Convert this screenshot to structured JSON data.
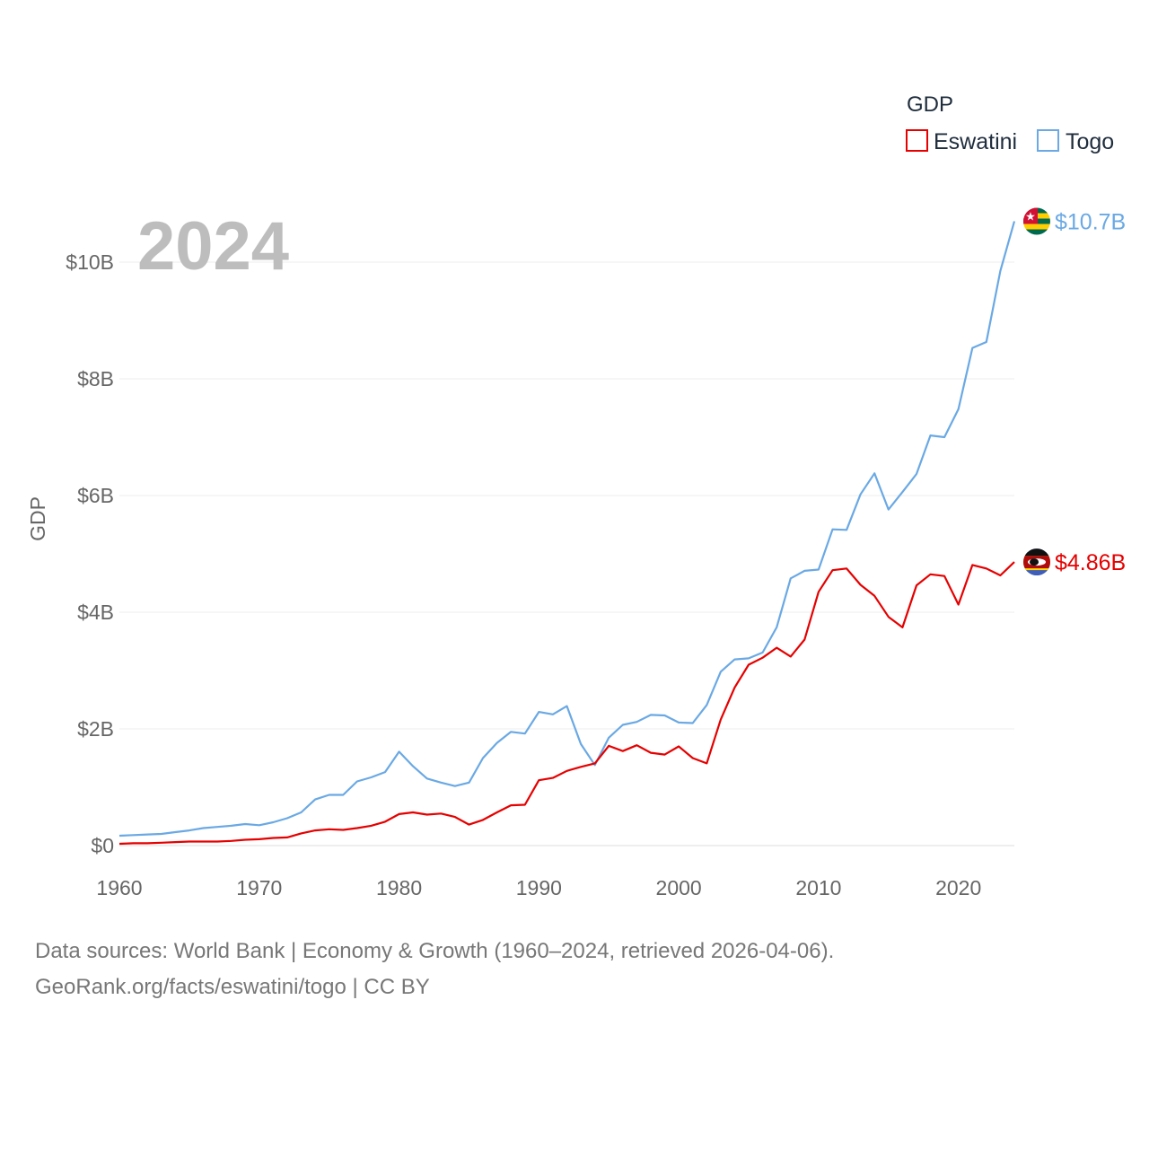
{
  "chart_data": {
    "type": "line",
    "title": "",
    "watermark_year": "2024",
    "ylabel": "GDP",
    "xlabel": "",
    "xlim": [
      1960,
      2024
    ],
    "ylim": [
      0,
      10.7
    ],
    "grid": true,
    "x_ticks": [
      1960,
      1970,
      1980,
      1990,
      2000,
      2010,
      2020
    ],
    "x_tick_labels": [
      "1960",
      "1970",
      "1980",
      "1990",
      "2000",
      "2010",
      "2020"
    ],
    "y_ticks": [
      0,
      2,
      4,
      6,
      8,
      10
    ],
    "y_tick_labels": [
      "$0",
      "$2B",
      "$4B",
      "$6B",
      "$8B",
      "$10B"
    ],
    "legend": {
      "title": "GDP",
      "position": "top-right"
    },
    "x": [
      1960,
      1961,
      1962,
      1963,
      1964,
      1965,
      1966,
      1967,
      1968,
      1969,
      1970,
      1971,
      1972,
      1973,
      1974,
      1975,
      1976,
      1977,
      1978,
      1979,
      1980,
      1981,
      1982,
      1983,
      1984,
      1985,
      1986,
      1987,
      1988,
      1989,
      1990,
      1991,
      1992,
      1993,
      1994,
      1995,
      1996,
      1997,
      1998,
      1999,
      2000,
      2001,
      2002,
      2003,
      2004,
      2005,
      2006,
      2007,
      2008,
      2009,
      2010,
      2011,
      2012,
      2013,
      2014,
      2015,
      2016,
      2017,
      2018,
      2019,
      2020,
      2021,
      2022,
      2023,
      2024
    ],
    "series": [
      {
        "name": "Eswatini",
        "color": "#e60000",
        "end_label": "$4.86B",
        "flag": "eswatini-flag",
        "values": [
          0.03,
          0.04,
          0.04,
          0.05,
          0.06,
          0.07,
          0.07,
          0.07,
          0.08,
          0.1,
          0.11,
          0.13,
          0.14,
          0.21,
          0.26,
          0.28,
          0.27,
          0.3,
          0.34,
          0.41,
          0.54,
          0.57,
          0.53,
          0.55,
          0.49,
          0.36,
          0.44,
          0.57,
          0.69,
          0.7,
          1.12,
          1.16,
          1.28,
          1.35,
          1.41,
          1.71,
          1.62,
          1.72,
          1.59,
          1.56,
          1.7,
          1.5,
          1.41,
          2.16,
          2.71,
          3.1,
          3.22,
          3.39,
          3.24,
          3.53,
          4.35,
          4.72,
          4.75,
          4.47,
          4.28,
          3.92,
          3.74,
          4.46,
          4.65,
          4.62,
          4.13,
          4.81,
          4.75,
          4.63,
          4.86
        ]
      },
      {
        "name": "Togo",
        "color": "#6aa9e4",
        "end_label": "$10.7B",
        "flag": "togo-flag",
        "values": [
          0.17,
          0.18,
          0.19,
          0.2,
          0.23,
          0.26,
          0.3,
          0.32,
          0.34,
          0.37,
          0.35,
          0.4,
          0.47,
          0.57,
          0.79,
          0.87,
          0.87,
          1.1,
          1.17,
          1.26,
          1.61,
          1.36,
          1.15,
          1.08,
          1.02,
          1.08,
          1.5,
          1.76,
          1.95,
          1.92,
          2.29,
          2.25,
          2.39,
          1.74,
          1.38,
          1.85,
          2.07,
          2.12,
          2.24,
          2.23,
          2.11,
          2.1,
          2.41,
          2.98,
          3.19,
          3.21,
          3.31,
          3.74,
          4.58,
          4.71,
          4.73,
          5.42,
          5.41,
          6.02,
          6.38,
          5.76,
          6.06,
          6.37,
          7.03,
          7.0,
          7.48,
          8.53,
          8.63,
          9.85,
          10.7
        ]
      }
    ]
  },
  "footer": {
    "line1": "Data sources: World Bank | Economy & Growth (1960–2024, retrieved 2026-04-06).",
    "line2": "GeoRank.org/facts/eswatini/togo | CC BY"
  }
}
